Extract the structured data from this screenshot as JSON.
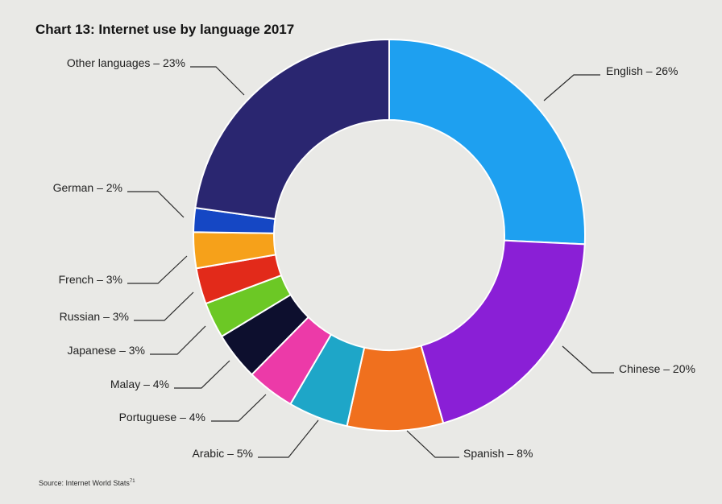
{
  "chart_data": {
    "type": "pie",
    "title": "Chart 13: Internet use by language 2017",
    "source": "Source: Internet World Stats",
    "source_superscript": "71",
    "slices": [
      {
        "label": "English – 26%",
        "value": 26,
        "color": "#1ea0f0"
      },
      {
        "label": "Chinese – 20%",
        "value": 20,
        "color": "#8a1fd6"
      },
      {
        "label": "Spanish – 8%",
        "value": 8,
        "color": "#f0701e"
      },
      {
        "label": "Arabic – 5%",
        "value": 5,
        "color": "#1ea6c8"
      },
      {
        "label": "Portuguese – 4%",
        "value": 4,
        "color": "#ec3aa8"
      },
      {
        "label": "Malay – 4%",
        "value": 4,
        "color": "#0d0f2e"
      },
      {
        "label": "Japanese – 3%",
        "value": 3,
        "color": "#6cc825"
      },
      {
        "label": "Russian – 3%",
        "value": 3,
        "color": "#e22a1a"
      },
      {
        "label": "French – 3%",
        "value": 3,
        "color": "#f6a11a"
      },
      {
        "label": "German – 2%",
        "value": 2,
        "color": "#1547c4"
      },
      {
        "label": "Other languages – 23%",
        "value": 23,
        "color": "#2a2670"
      }
    ]
  }
}
